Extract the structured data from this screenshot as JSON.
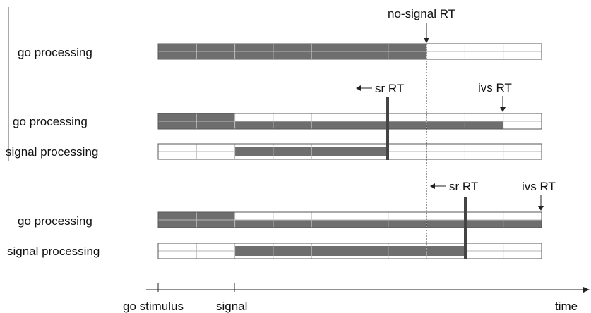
{
  "labels": {
    "no_signal_rt": "no-signal RT",
    "sr_rt_1": "sr RT",
    "ivs_rt_1": "ivs RT",
    "sr_rt_2": "sr RT",
    "ivs_rt_2": "ivs RT",
    "time": "time",
    "go_stimulus": "go stimulus",
    "signal": "signal"
  },
  "rows": [
    {
      "label": "go processing",
      "kind": "go",
      "filled_from": 0,
      "filled_to": 7
    },
    {
      "label": "go processing",
      "kind": "go-split",
      "filled_from": 0,
      "filled_to": 2,
      "lower_filled_to": 9
    },
    {
      "label": "signal processing",
      "kind": "signal",
      "filled_from": 2,
      "filled_to": 6
    },
    {
      "label": "go processing",
      "kind": "go-split",
      "filled_from": 0,
      "filled_to": 2,
      "lower_filled_to": 10
    },
    {
      "label": "signal processing",
      "kind": "signal",
      "filled_from": 2,
      "filled_to": 8
    }
  ],
  "segments": 10,
  "colors": {
    "fill": "#6e6e6e",
    "stroke": "#555555",
    "line": "#333333"
  }
}
